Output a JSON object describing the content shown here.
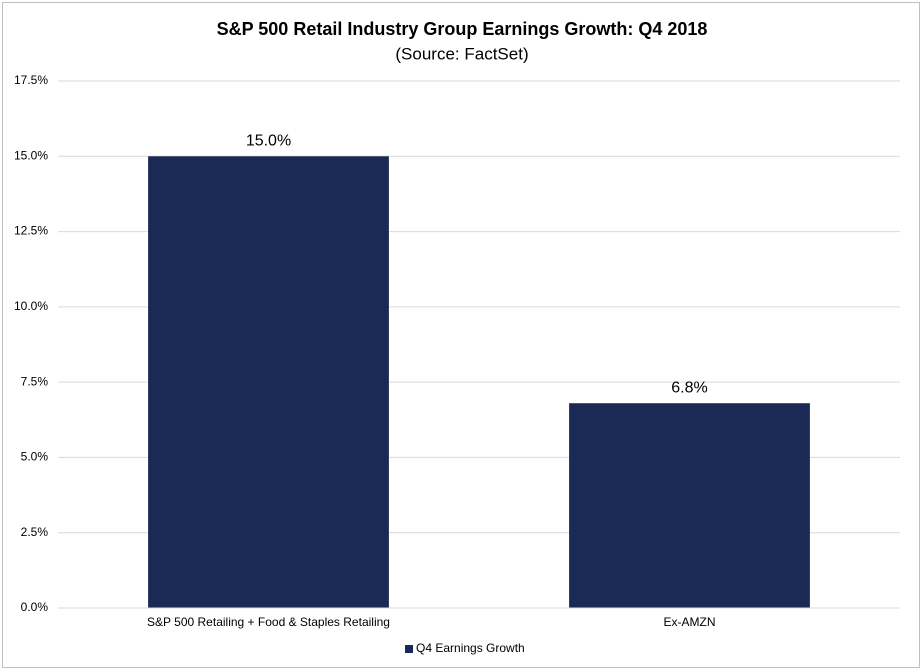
{
  "chart_data": {
    "type": "bar",
    "title": "S&P 500 Retail Industry Group Earnings Growth: Q4 2018",
    "subtitle": "(Source: FactSet)",
    "categories": [
      "S&P 500 Retailing + Food & Staples Retailing",
      "Ex-AMZN"
    ],
    "series": [
      {
        "name": "Q4 Earnings Growth",
        "color": "#1b2a55",
        "values": [
          15.0,
          6.8
        ],
        "value_labels": [
          "15.0%",
          "6.8%"
        ]
      }
    ],
    "ylim": [
      0,
      17.5
    ],
    "yticks": [
      {
        "value": 0,
        "label": "0.0%"
      },
      {
        "value": 2.5,
        "label": "2.5%"
      },
      {
        "value": 5,
        "label": "5.0%"
      },
      {
        "value": 7.5,
        "label": "7.5%"
      },
      {
        "value": 10,
        "label": "10.0%"
      },
      {
        "value": 12.5,
        "label": "12.5%"
      },
      {
        "value": 15,
        "label": "15.0%"
      },
      {
        "value": 17.5,
        "label": "17.5%"
      }
    ],
    "grid": true,
    "legend": "bottom"
  }
}
